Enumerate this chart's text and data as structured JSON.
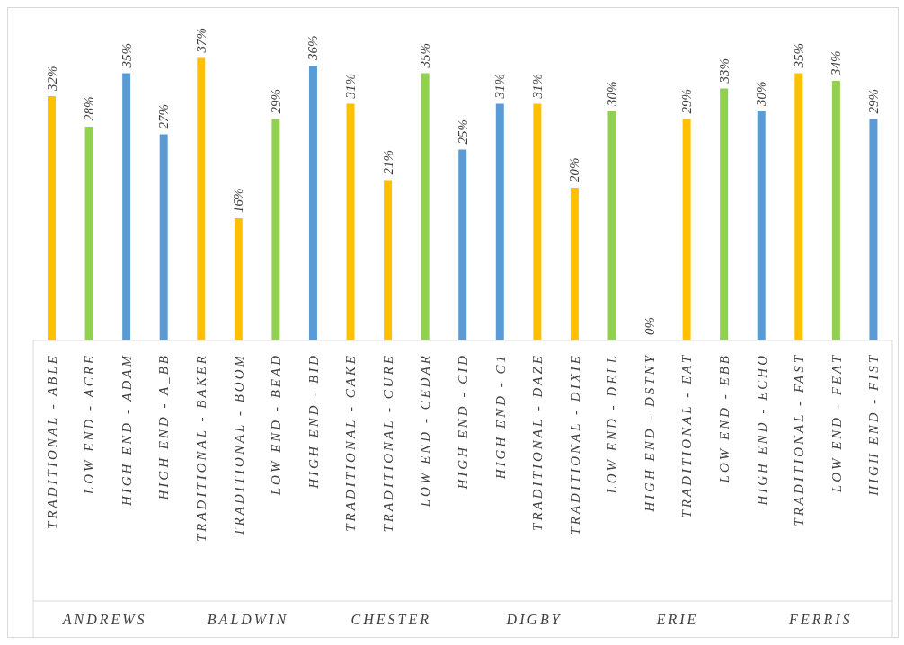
{
  "chart_data": {
    "type": "bar",
    "categories": [
      "TRADITIONAL - ABLE",
      "LOW END - ACRE",
      "HIGH END - ADAM",
      "HIGH END - A_BB",
      "TRADITIONAL - BAKER",
      "TRADITIONAL - BOOM",
      "LOW END - BEAD",
      "HIGH END - BID",
      "TRADITIONAL - CAKE",
      "TRADITIONAL - CURE",
      "LOW END - CEDAR",
      "HIGH END - CID",
      "HIGH END - C1",
      "TRADITIONAL - DAZE",
      "TRADITIONAL - DIXIE",
      "LOW END - DELL",
      "HIGH END - DSTNY",
      "TRADITIONAL - EAT",
      "LOW END - EBB",
      "HIGH END - ECHO",
      "TRADITIONAL - FAST",
      "LOW END - FEAT",
      "HIGH END - FIST"
    ],
    "values": [
      32,
      28,
      35,
      27,
      37,
      16,
      29,
      36,
      31,
      21,
      35,
      25,
      31,
      31,
      20,
      30,
      0,
      29,
      33,
      30,
      35,
      34,
      29
    ],
    "value_labels": [
      "32%",
      "28%",
      "35%",
      "27%",
      "37%",
      "16%",
      "29%",
      "36%",
      "31%",
      "21%",
      "35%",
      "25%",
      "31%",
      "31%",
      "20%",
      "30%",
      "0%",
      "29%",
      "33%",
      "30%",
      "35%",
      "34%",
      "29%"
    ],
    "colors": [
      "#ffc000",
      "#92d050",
      "#5b9bd5",
      "#5b9bd5",
      "#ffc000",
      "#ffc000",
      "#92d050",
      "#5b9bd5",
      "#ffc000",
      "#ffc000",
      "#92d050",
      "#5b9bd5",
      "#5b9bd5",
      "#ffc000",
      "#ffc000",
      "#92d050",
      "#5b9bd5",
      "#ffc000",
      "#92d050",
      "#5b9bd5",
      "#ffc000",
      "#92d050",
      "#5b9bd5"
    ],
    "annotations": [
      "ANDREWS",
      "BALDWIN",
      "CHESTER",
      "DIGBY",
      "ERIE",
      "FERRIS"
    ],
    "grid": false,
    "legend": false
  }
}
